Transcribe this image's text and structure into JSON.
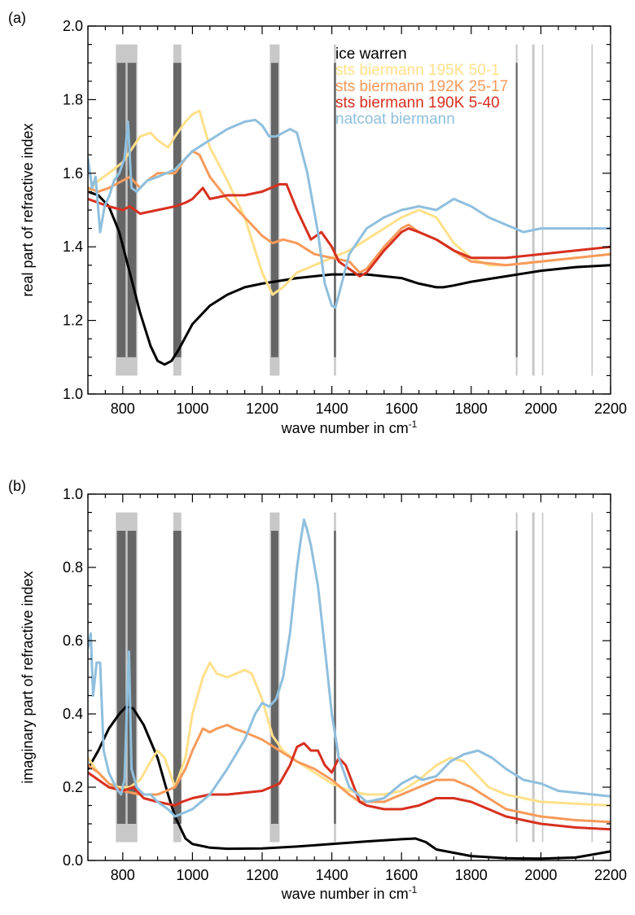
{
  "figure": {
    "panel_a_label": "(a)",
    "panel_b_label": "(b)"
  },
  "colors": {
    "ice_warren": "#000000",
    "sts_195": "#ffe08a",
    "sts_192": "#f79a5a",
    "sts_190": "#d7301f",
    "natcoat": "#8fbfdd",
    "band_dark": "#666666",
    "band_light": "#c8c8c8"
  },
  "chart_data": [
    {
      "type": "line",
      "panel": "(a)",
      "xlabel": "wave number in cm⁻¹",
      "ylabel": "real part of refractive index",
      "xlim": [
        700,
        2200
      ],
      "ylim": [
        1.0,
        2.0
      ],
      "xticks": [
        800,
        1000,
        1200,
        1400,
        1600,
        1800,
        2000,
        2200
      ],
      "yticks": [
        "1.0",
        "1.2",
        "1.4",
        "1.6",
        "1.8",
        "2.0"
      ],
      "legend_position": "top-right",
      "grid": false,
      "bands": [
        {
          "x1": 780,
          "x2": 842,
          "dark": [
            1.1,
            1.9
          ],
          "light": [
            1.05,
            1.95
          ]
        },
        {
          "x1": 945,
          "x2": 968,
          "dark": [
            1.1,
            1.9
          ],
          "light": [
            1.05,
            1.95
          ]
        },
        {
          "x1": 1222,
          "x2": 1250,
          "dark": [
            1.1,
            1.9
          ],
          "light": [
            1.05,
            1.95
          ]
        },
        {
          "x1": 1406,
          "x2": 1412,
          "dark": [
            1.1,
            1.9
          ],
          "light": [
            1.05,
            1.95
          ]
        },
        {
          "x1": 1928,
          "x2": 1933,
          "dark": [
            1.1,
            1.9
          ],
          "light": [
            1.05,
            1.95
          ]
        },
        {
          "x1": 1975,
          "x2": 1982,
          "dark": null,
          "light": [
            1.05,
            1.95
          ]
        },
        {
          "x1": 2003,
          "x2": 2007,
          "dark": null,
          "light": [
            1.05,
            1.95
          ]
        },
        {
          "x1": 2145,
          "x2": 2149,
          "dark": null,
          "light": [
            1.05,
            1.95
          ]
        }
      ],
      "series": [
        {
          "name": "ice warren",
          "color_key": "ice_warren",
          "x": [
            700,
            730,
            760,
            790,
            820,
            850,
            880,
            900,
            920,
            940,
            960,
            1000,
            1050,
            1100,
            1150,
            1200,
            1300,
            1400,
            1500,
            1600,
            1650,
            1700,
            1720,
            1750,
            1800,
            1900,
            2000,
            2100,
            2200
          ],
          "y": [
            1.55,
            1.54,
            1.51,
            1.44,
            1.33,
            1.22,
            1.13,
            1.09,
            1.08,
            1.09,
            1.12,
            1.19,
            1.24,
            1.27,
            1.29,
            1.3,
            1.315,
            1.325,
            1.325,
            1.315,
            1.3,
            1.29,
            1.29,
            1.295,
            1.305,
            1.32,
            1.335,
            1.345,
            1.35
          ]
        },
        {
          "name": "sts biermann 195K 50-1",
          "color_key": "sts_195",
          "x": [
            700,
            730,
            760,
            800,
            850,
            880,
            900,
            930,
            950,
            980,
            1000,
            1020,
            1050,
            1100,
            1150,
            1200,
            1230,
            1260,
            1300,
            1350,
            1400,
            1450,
            1500,
            1550,
            1600,
            1650,
            1700,
            1750,
            1800,
            1850,
            1900,
            2000,
            2100,
            2200
          ],
          "y": [
            1.55,
            1.58,
            1.6,
            1.63,
            1.7,
            1.71,
            1.69,
            1.67,
            1.7,
            1.74,
            1.76,
            1.77,
            1.67,
            1.58,
            1.48,
            1.33,
            1.27,
            1.29,
            1.33,
            1.35,
            1.37,
            1.39,
            1.42,
            1.45,
            1.48,
            1.5,
            1.48,
            1.41,
            1.37,
            1.35,
            1.35,
            1.36,
            1.37,
            1.38
          ]
        },
        {
          "name": "sts biermann 192K 25-17",
          "color_key": "sts_192",
          "x": [
            700,
            730,
            760,
            800,
            820,
            850,
            870,
            900,
            950,
            980,
            1000,
            1020,
            1050,
            1100,
            1150,
            1200,
            1230,
            1260,
            1300,
            1350,
            1400,
            1450,
            1480,
            1500,
            1550,
            1600,
            1620,
            1650,
            1700,
            1750,
            1800,
            1900,
            2000,
            2100,
            2200
          ],
          "y": [
            1.56,
            1.55,
            1.56,
            1.58,
            1.59,
            1.56,
            1.58,
            1.6,
            1.6,
            1.64,
            1.66,
            1.65,
            1.59,
            1.53,
            1.48,
            1.43,
            1.41,
            1.42,
            1.41,
            1.38,
            1.37,
            1.36,
            1.33,
            1.34,
            1.4,
            1.45,
            1.46,
            1.44,
            1.42,
            1.39,
            1.36,
            1.35,
            1.36,
            1.37,
            1.38
          ]
        },
        {
          "name": "sts biermann 190K 5-40",
          "color_key": "sts_190",
          "x": [
            700,
            730,
            760,
            800,
            820,
            850,
            900,
            950,
            980,
            1000,
            1030,
            1050,
            1100,
            1150,
            1200,
            1250,
            1270,
            1300,
            1340,
            1370,
            1400,
            1420,
            1450,
            1480,
            1500,
            1550,
            1600,
            1620,
            1650,
            1700,
            1750,
            1800,
            1900,
            2000,
            2100,
            2200
          ],
          "y": [
            1.53,
            1.52,
            1.51,
            1.5,
            1.51,
            1.49,
            1.5,
            1.51,
            1.52,
            1.53,
            1.56,
            1.53,
            1.54,
            1.54,
            1.55,
            1.57,
            1.57,
            1.5,
            1.42,
            1.44,
            1.4,
            1.36,
            1.34,
            1.32,
            1.33,
            1.39,
            1.44,
            1.45,
            1.44,
            1.42,
            1.39,
            1.37,
            1.37,
            1.38,
            1.39,
            1.4
          ]
        },
        {
          "name": "natcoat biermann",
          "color_key": "natcoat",
          "x": [
            700,
            712,
            722,
            735,
            748,
            762,
            775,
            790,
            805,
            815,
            825,
            840,
            870,
            900,
            950,
            1000,
            1050,
            1100,
            1150,
            1180,
            1200,
            1220,
            1240,
            1260,
            1280,
            1300,
            1330,
            1360,
            1380,
            1400,
            1410,
            1420,
            1450,
            1500,
            1550,
            1600,
            1650,
            1700,
            1750,
            1800,
            1850,
            1900,
            1950,
            2000,
            2100,
            2200
          ],
          "y": [
            1.64,
            1.56,
            1.59,
            1.44,
            1.51,
            1.54,
            1.58,
            1.6,
            1.64,
            1.74,
            1.56,
            1.55,
            1.58,
            1.59,
            1.61,
            1.66,
            1.69,
            1.72,
            1.74,
            1.745,
            1.73,
            1.7,
            1.7,
            1.71,
            1.72,
            1.71,
            1.6,
            1.44,
            1.3,
            1.24,
            1.235,
            1.27,
            1.38,
            1.45,
            1.48,
            1.5,
            1.51,
            1.5,
            1.53,
            1.51,
            1.48,
            1.46,
            1.44,
            1.45,
            1.45,
            1.45
          ]
        }
      ]
    },
    {
      "type": "line",
      "panel": "(b)",
      "xlabel": "wave number in cm⁻¹",
      "ylabel": "imaginary part of refractive index",
      "xlim": [
        700,
        2200
      ],
      "ylim": [
        0.0,
        1.0
      ],
      "xticks": [
        800,
        1000,
        1200,
        1400,
        1600,
        1800,
        2000,
        2200
      ],
      "yticks": [
        "0.0",
        "0.2",
        "0.4",
        "0.6",
        "0.8",
        "1.0"
      ],
      "grid": false,
      "bands": [
        {
          "x1": 780,
          "x2": 842,
          "dark": [
            0.1,
            0.9
          ],
          "light": [
            0.05,
            0.95
          ]
        },
        {
          "x1": 945,
          "x2": 968,
          "dark": [
            0.1,
            0.9
          ],
          "light": [
            0.05,
            0.95
          ]
        },
        {
          "x1": 1222,
          "x2": 1250,
          "dark": [
            0.1,
            0.9
          ],
          "light": [
            0.05,
            0.95
          ]
        },
        {
          "x1": 1406,
          "x2": 1412,
          "dark": [
            0.1,
            0.9
          ],
          "light": [
            0.05,
            0.95
          ]
        },
        {
          "x1": 1928,
          "x2": 1933,
          "dark": [
            0.1,
            0.9
          ],
          "light": [
            0.05,
            0.95
          ]
        },
        {
          "x1": 1975,
          "x2": 1982,
          "dark": null,
          "light": [
            0.05,
            0.95
          ]
        },
        {
          "x1": 2003,
          "x2": 2007,
          "dark": null,
          "light": [
            0.05,
            0.95
          ]
        },
        {
          "x1": 2145,
          "x2": 2149,
          "dark": null,
          "light": [
            0.05,
            0.95
          ]
        }
      ],
      "series": [
        {
          "name": "ice warren",
          "color_key": "ice_warren",
          "x": [
            700,
            730,
            760,
            790,
            810,
            830,
            860,
            900,
            930,
            950,
            965,
            980,
            1000,
            1050,
            1100,
            1200,
            1300,
            1400,
            1500,
            1600,
            1640,
            1670,
            1700,
            1800,
            1900,
            2000,
            2100,
            2200
          ],
          "y": [
            0.25,
            0.3,
            0.36,
            0.4,
            0.42,
            0.415,
            0.37,
            0.28,
            0.18,
            0.12,
            0.09,
            0.06,
            0.045,
            0.035,
            0.032,
            0.033,
            0.038,
            0.045,
            0.052,
            0.058,
            0.06,
            0.05,
            0.03,
            0.012,
            0.006,
            0.005,
            0.008,
            0.025
          ]
        },
        {
          "name": "sts biermann 195K 50-1",
          "color_key": "sts_195",
          "x": [
            700,
            730,
            760,
            790,
            820,
            850,
            880,
            900,
            920,
            950,
            980,
            1000,
            1030,
            1050,
            1070,
            1100,
            1150,
            1170,
            1200,
            1230,
            1260,
            1300,
            1350,
            1400,
            1450,
            1500,
            1550,
            1600,
            1650,
            1700,
            1740,
            1780,
            1800,
            1850,
            1900,
            2000,
            2100,
            2200
          ],
          "y": [
            0.28,
            0.24,
            0.21,
            0.2,
            0.2,
            0.22,
            0.27,
            0.3,
            0.28,
            0.2,
            0.28,
            0.4,
            0.5,
            0.54,
            0.51,
            0.5,
            0.52,
            0.51,
            0.44,
            0.34,
            0.3,
            0.27,
            0.24,
            0.21,
            0.19,
            0.18,
            0.18,
            0.19,
            0.22,
            0.26,
            0.28,
            0.27,
            0.25,
            0.2,
            0.18,
            0.16,
            0.155,
            0.15
          ]
        },
        {
          "name": "sts biermann 192K 25-17",
          "color_key": "sts_192",
          "x": [
            700,
            730,
            760,
            800,
            850,
            900,
            950,
            980,
            1000,
            1030,
            1050,
            1070,
            1100,
            1120,
            1150,
            1200,
            1250,
            1300,
            1350,
            1400,
            1450,
            1480,
            1500,
            1550,
            1600,
            1650,
            1700,
            1750,
            1800,
            1900,
            2000,
            2100,
            2200
          ],
          "y": [
            0.26,
            0.24,
            0.21,
            0.19,
            0.18,
            0.18,
            0.2,
            0.25,
            0.3,
            0.36,
            0.35,
            0.36,
            0.37,
            0.36,
            0.35,
            0.33,
            0.3,
            0.27,
            0.25,
            0.22,
            0.18,
            0.16,
            0.16,
            0.16,
            0.18,
            0.2,
            0.22,
            0.22,
            0.2,
            0.14,
            0.12,
            0.11,
            0.105
          ]
        },
        {
          "name": "sts biermann 190K 5-40",
          "color_key": "sts_190",
          "x": [
            700,
            730,
            760,
            800,
            830,
            860,
            900,
            950,
            970,
            1000,
            1050,
            1100,
            1150,
            1200,
            1250,
            1280,
            1300,
            1320,
            1340,
            1360,
            1380,
            1400,
            1420,
            1440,
            1480,
            1500,
            1550,
            1600,
            1650,
            1700,
            1750,
            1800,
            1900,
            2000,
            2100,
            2200
          ],
          "y": [
            0.24,
            0.22,
            0.2,
            0.19,
            0.2,
            0.17,
            0.16,
            0.15,
            0.16,
            0.17,
            0.18,
            0.18,
            0.185,
            0.19,
            0.21,
            0.26,
            0.31,
            0.32,
            0.3,
            0.3,
            0.26,
            0.24,
            0.28,
            0.26,
            0.16,
            0.15,
            0.14,
            0.14,
            0.15,
            0.17,
            0.17,
            0.16,
            0.12,
            0.1,
            0.09,
            0.085
          ]
        },
        {
          "name": "natcoat biermann",
          "color_key": "natcoat",
          "x": [
            700,
            708,
            715,
            725,
            735,
            745,
            760,
            780,
            795,
            805,
            812,
            818,
            825,
            840,
            860,
            880,
            900,
            930,
            950,
            1000,
            1050,
            1100,
            1150,
            1180,
            1200,
            1220,
            1240,
            1260,
            1280,
            1300,
            1310,
            1320,
            1330,
            1340,
            1360,
            1380,
            1400,
            1420,
            1450,
            1500,
            1550,
            1600,
            1640,
            1660,
            1700,
            1740,
            1780,
            1820,
            1860,
            1900,
            1950,
            2000,
            2050,
            2100,
            2150,
            2200
          ],
          "y": [
            0.58,
            0.62,
            0.45,
            0.54,
            0.54,
            0.3,
            0.24,
            0.2,
            0.18,
            0.22,
            0.42,
            0.57,
            0.25,
            0.2,
            0.18,
            0.18,
            0.16,
            0.14,
            0.12,
            0.14,
            0.18,
            0.25,
            0.33,
            0.4,
            0.43,
            0.42,
            0.44,
            0.5,
            0.62,
            0.8,
            0.87,
            0.93,
            0.9,
            0.86,
            0.75,
            0.58,
            0.4,
            0.28,
            0.2,
            0.16,
            0.17,
            0.21,
            0.23,
            0.22,
            0.23,
            0.27,
            0.29,
            0.3,
            0.28,
            0.25,
            0.22,
            0.21,
            0.19,
            0.185,
            0.18,
            0.175
          ]
        }
      ]
    }
  ]
}
